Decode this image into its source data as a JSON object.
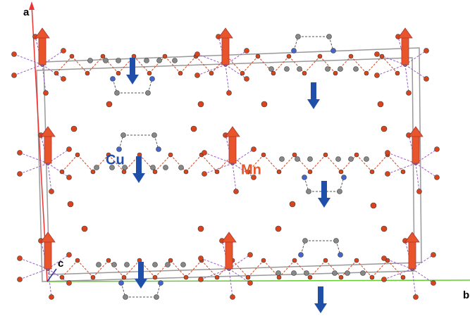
{
  "axes": {
    "a": "a",
    "b": "b",
    "c": "c"
  },
  "atoms": {
    "cu": "Cu",
    "mn": "Mn"
  }
}
